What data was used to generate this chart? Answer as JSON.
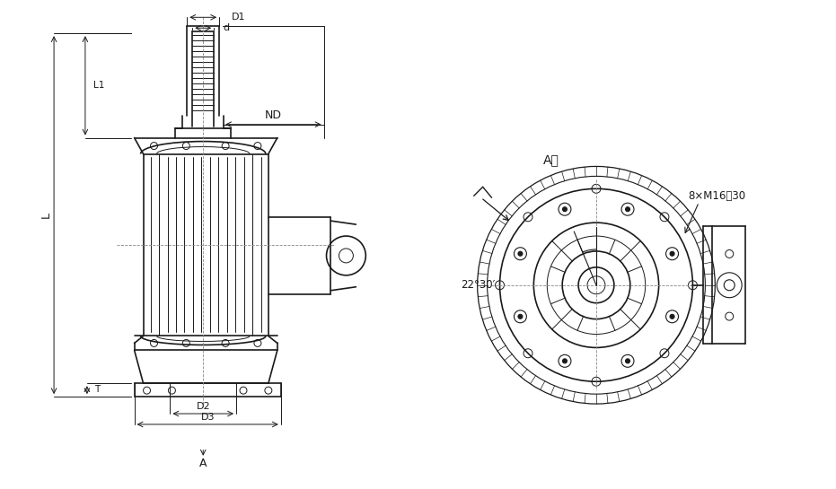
{
  "bg_color": "#ffffff",
  "line_color": "#1a1a1a",
  "dim_color": "#1a1a1a",
  "fig_width": 9.31,
  "fig_height": 5.45,
  "dpi": 100,
  "annotations": {
    "D1": "D1",
    "d": "d",
    "ND": "ND",
    "L1": "L1",
    "L": "L",
    "T": "T",
    "D2": "D2",
    "D3": "D3",
    "A": "A",
    "A_dir": "A向",
    "bolt_label": "8×M16淵30",
    "angle_label": "22°30′"
  }
}
